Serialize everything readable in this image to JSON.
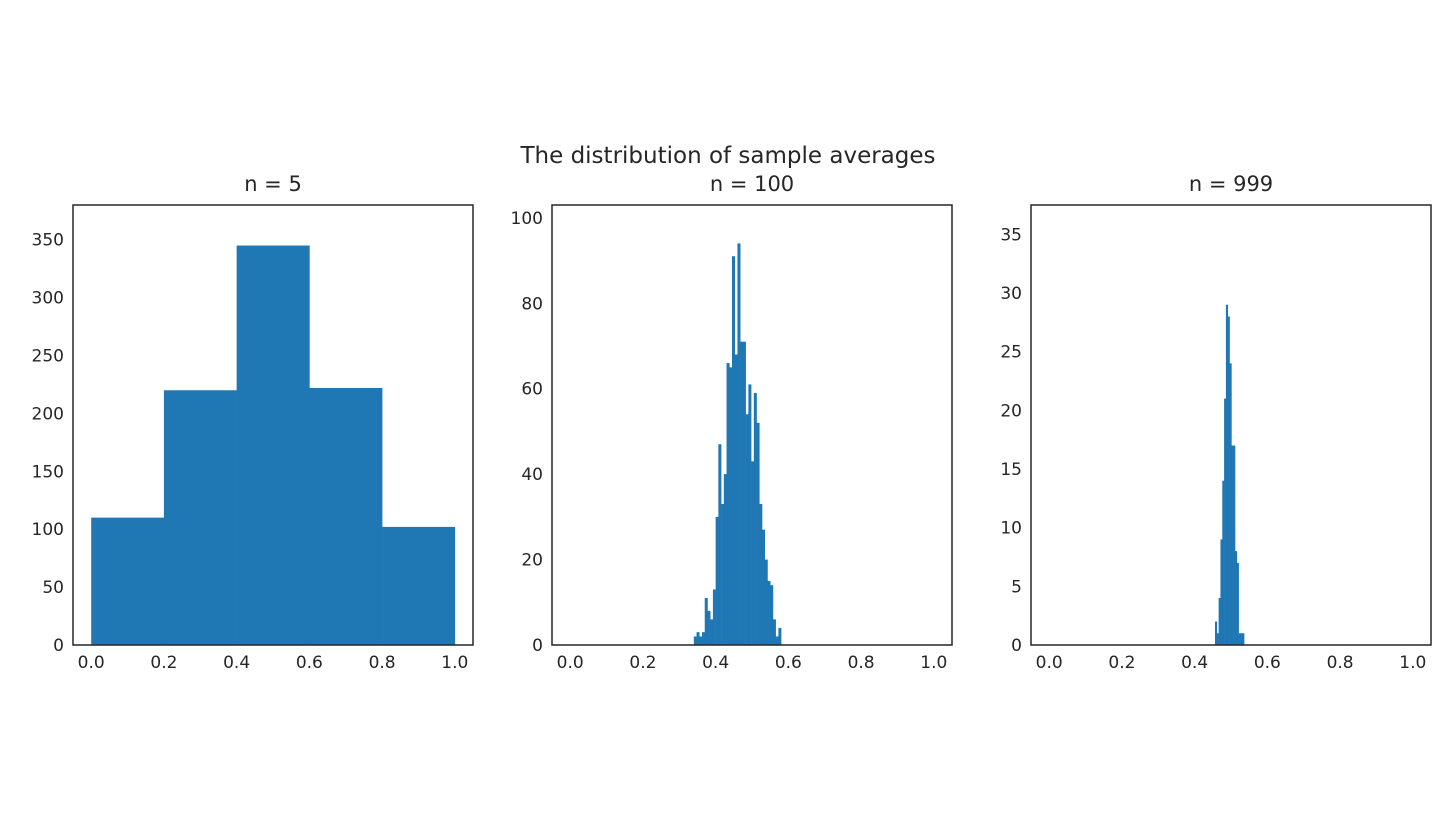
{
  "figure": {
    "suptitle": "The distribution of sample averages"
  },
  "colors": {
    "bar": "#1f77b4",
    "axes_edge": "#262626",
    "text": "#262626",
    "background": "#ffffff"
  },
  "chart_data": [
    {
      "type": "bar",
      "title": "n = 5",
      "xlabel": "",
      "ylabel": "",
      "grid": false,
      "xlim": [
        -0.05,
        1.05
      ],
      "ylim": [
        0,
        380
      ],
      "xticks": [
        0.0,
        0.2,
        0.4,
        0.6,
        0.8,
        1.0
      ],
      "xtick_labels": [
        "0.0",
        "0.2",
        "0.4",
        "0.6",
        "0.8",
        "1.0"
      ],
      "yticks": [
        0,
        50,
        100,
        150,
        200,
        250,
        300,
        350
      ],
      "ytick_labels": [
        "0",
        "50",
        "100",
        "150",
        "200",
        "250",
        "300",
        "350"
      ],
      "bin_start": 0.0,
      "bin_width": 0.2,
      "values": [
        110,
        220,
        345,
        222,
        102
      ]
    },
    {
      "type": "bar",
      "title": "n = 100",
      "xlabel": "",
      "ylabel": "",
      "grid": false,
      "xlim": [
        -0.05,
        1.05
      ],
      "ylim": [
        0,
        103
      ],
      "xticks": [
        0.0,
        0.2,
        0.4,
        0.6,
        0.8,
        1.0
      ],
      "xtick_labels": [
        "0.0",
        "0.2",
        "0.4",
        "0.6",
        "0.8",
        "1.0"
      ],
      "yticks": [
        0,
        20,
        40,
        60,
        80,
        100
      ],
      "ytick_labels": [
        "0",
        "20",
        "40",
        "60",
        "80",
        "100"
      ],
      "bin_start": 0.34,
      "bin_width": 0.0075,
      "values": [
        2,
        3,
        2,
        3,
        11,
        8,
        6,
        13,
        30,
        47,
        33,
        40,
        66,
        65,
        91,
        68,
        94,
        71,
        71,
        54,
        61,
        43,
        59,
        52,
        33,
        27,
        20,
        15,
        14,
        6,
        2,
        4
      ]
    },
    {
      "type": "bar",
      "title": "n = 999",
      "xlabel": "",
      "ylabel": "",
      "grid": false,
      "xlim": [
        -0.05,
        1.05
      ],
      "ylim": [
        0,
        37.5
      ],
      "xticks": [
        0.0,
        0.2,
        0.4,
        0.6,
        0.8,
        1.0
      ],
      "xtick_labels": [
        "0.0",
        "0.2",
        "0.4",
        "0.6",
        "0.8",
        "1.0"
      ],
      "yticks": [
        0,
        5,
        10,
        15,
        20,
        25,
        30,
        35
      ],
      "ytick_labels": [
        "0",
        "5",
        "10",
        "15",
        "20",
        "25",
        "30",
        "35"
      ],
      "bin_start": 0.456,
      "bin_width": 0.005,
      "values": [
        2,
        1,
        4,
        9,
        14,
        21,
        29,
        28,
        24,
        17,
        17,
        8,
        7,
        1,
        1,
        1
      ]
    }
  ]
}
